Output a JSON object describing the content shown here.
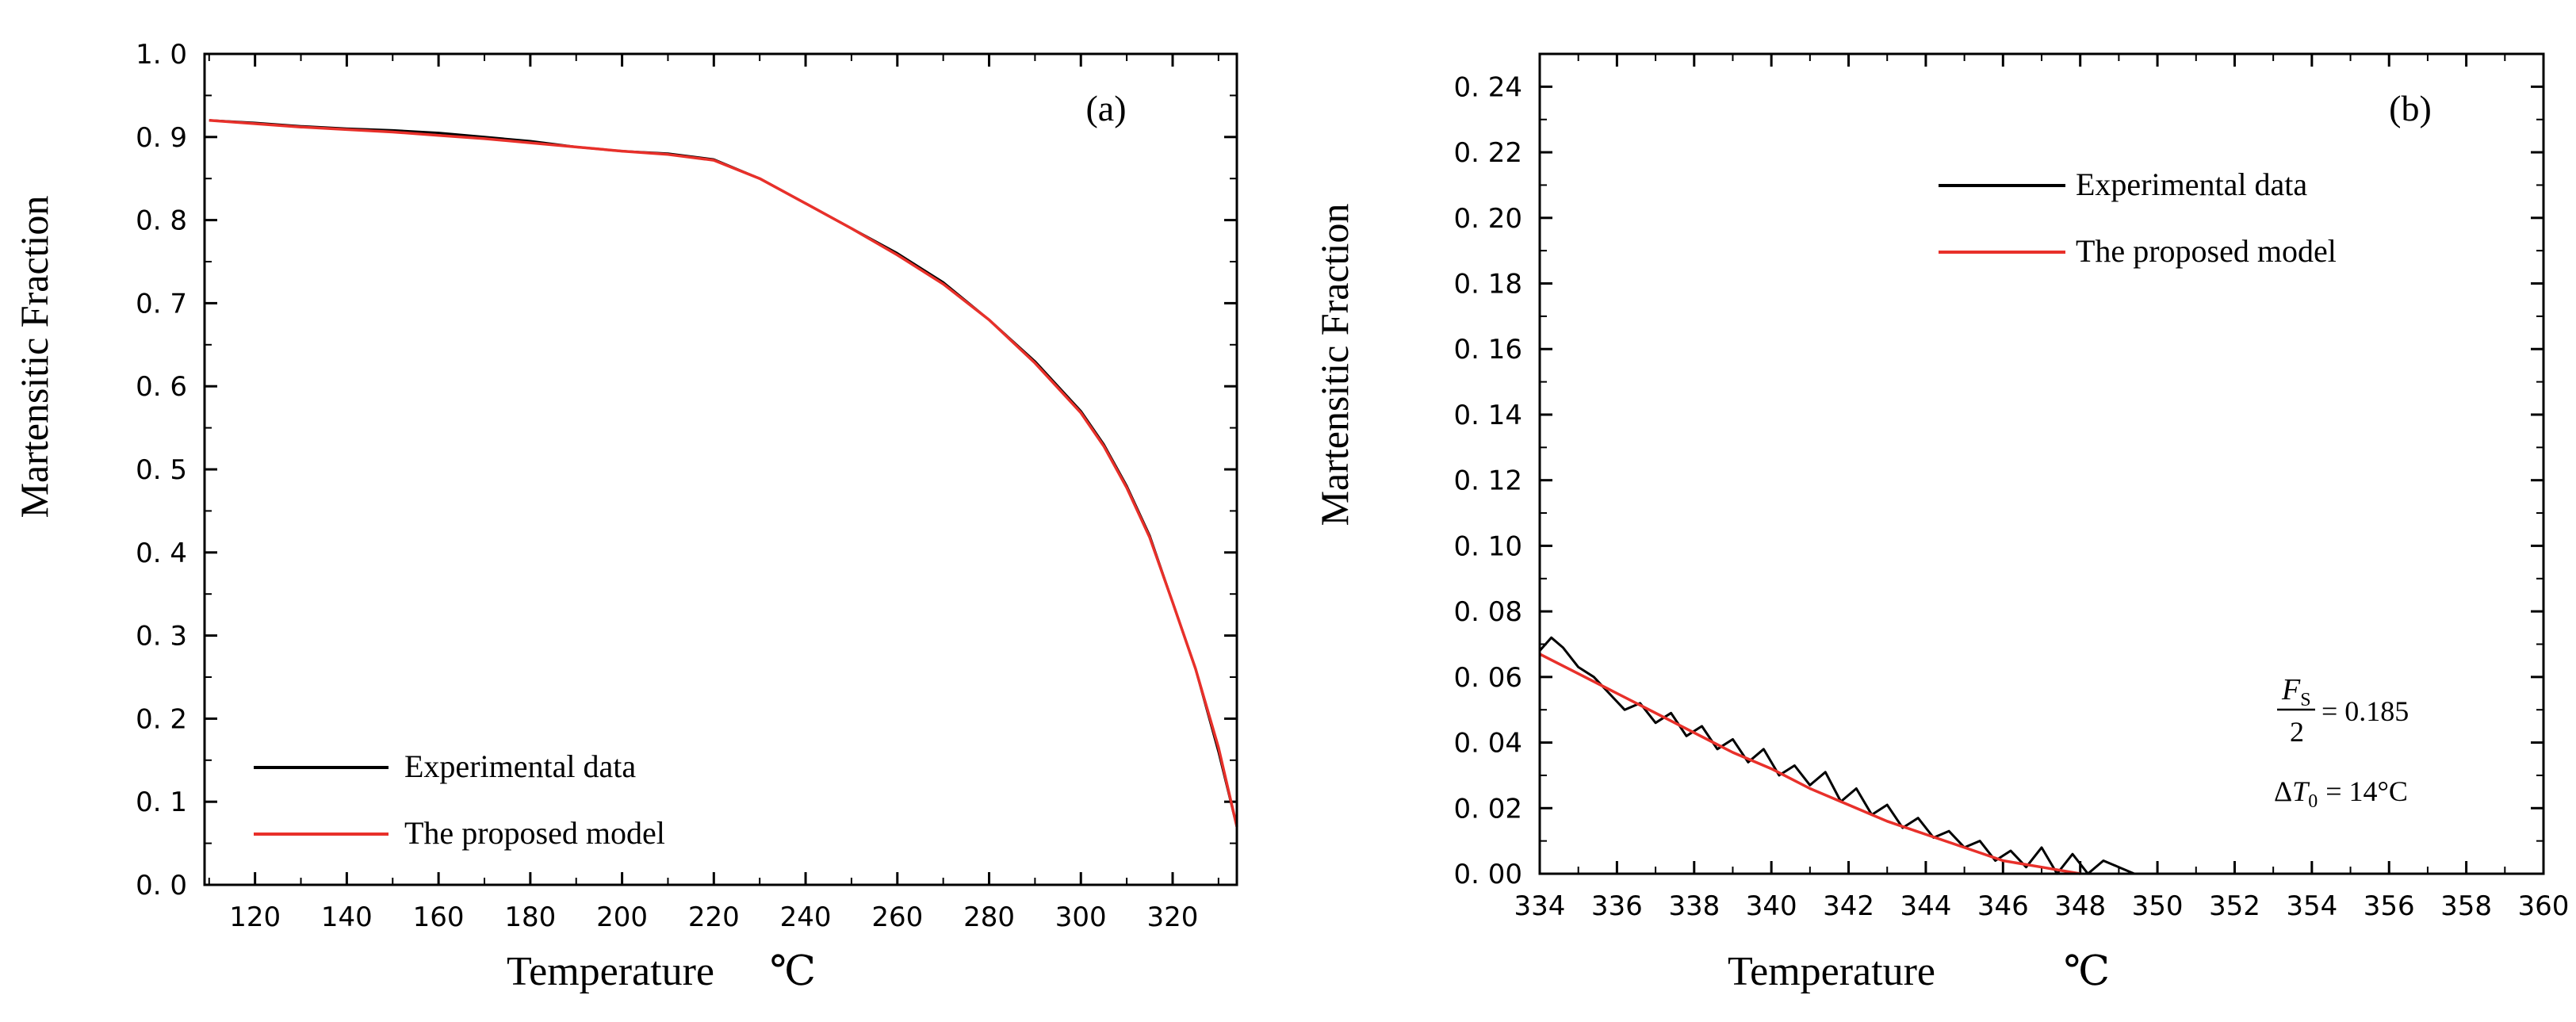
{
  "chart_data": [
    {
      "panel": "a",
      "type": "line",
      "panel_label": "(a)",
      "xlabel": "Temperature",
      "xunit": "℃",
      "ylabel": "Martensitic Fraction",
      "xlim": [
        109,
        334
      ],
      "ylim": [
        0,
        1.0
      ],
      "xticks": [
        120,
        140,
        160,
        180,
        200,
        220,
        240,
        260,
        280,
        300,
        320
      ],
      "yticks": [
        "0. 0",
        "0. 1",
        "0. 2",
        "0. 3",
        "0. 4",
        "0. 5",
        "0. 6",
        "0. 7",
        "0. 8",
        "0. 9",
        "1. 0"
      ],
      "legend_position": "bottom-left",
      "series": [
        {
          "name": "Experimental data",
          "color": "#000000",
          "x": [
            110,
            120,
            130,
            140,
            150,
            160,
            170,
            180,
            190,
            200,
            210,
            220,
            230,
            240,
            250,
            260,
            270,
            280,
            290,
            300,
            305,
            310,
            315,
            320,
            325,
            330,
            334
          ],
          "y": [
            0.92,
            0.917,
            0.913,
            0.91,
            0.908,
            0.905,
            0.9,
            0.895,
            0.888,
            0.883,
            0.88,
            0.873,
            0.85,
            0.82,
            0.79,
            0.76,
            0.725,
            0.68,
            0.63,
            0.57,
            0.53,
            0.48,
            0.42,
            0.34,
            0.26,
            0.16,
            0.07
          ]
        },
        {
          "name": "The proposed model",
          "color": "#e8302a",
          "x": [
            110,
            120,
            130,
            140,
            150,
            160,
            170,
            180,
            190,
            200,
            210,
            220,
            230,
            240,
            250,
            260,
            270,
            280,
            290,
            300,
            305,
            310,
            315,
            320,
            325,
            330,
            334
          ],
          "y": [
            0.92,
            0.916,
            0.912,
            0.909,
            0.906,
            0.902,
            0.898,
            0.893,
            0.888,
            0.883,
            0.879,
            0.872,
            0.85,
            0.82,
            0.79,
            0.758,
            0.723,
            0.68,
            0.628,
            0.568,
            0.528,
            0.478,
            0.418,
            0.34,
            0.26,
            0.165,
            0.07
          ]
        }
      ]
    },
    {
      "panel": "b",
      "type": "line",
      "panel_label": "(b)",
      "xlabel": "Temperature",
      "xunit": "℃",
      "ylabel": "Martensitic Fraction",
      "xlim": [
        334,
        360
      ],
      "ylim": [
        0,
        0.25
      ],
      "xticks": [
        334,
        336,
        338,
        340,
        342,
        344,
        346,
        348,
        350,
        352,
        354,
        356,
        358,
        360
      ],
      "yticks": [
        "0. 00",
        "0. 02",
        "0. 04",
        "0. 06",
        "0. 08",
        "0. 10",
        "0. 12",
        "0. 14",
        "0. 16",
        "0. 18",
        "0. 20",
        "0. 22",
        "0. 24"
      ],
      "legend_position": "top-right",
      "annotation": {
        "numerator": "F",
        "numerator_sub": "S",
        "denominator": "2",
        "eq1_value": "= 0.185",
        "delta": "Δ",
        "symbol": "T",
        "symbol_sub": "0",
        "eq2_value": "= 14°C"
      },
      "series": [
        {
          "name": "Experimental data",
          "color": "#000000",
          "x": [
            334.0,
            334.3,
            334.6,
            335.0,
            335.4,
            335.8,
            336.2,
            336.6,
            337.0,
            337.4,
            337.8,
            338.2,
            338.6,
            339.0,
            339.4,
            339.8,
            340.2,
            340.6,
            341.0,
            341.4,
            341.8,
            342.2,
            342.6,
            343.0,
            343.4,
            343.8,
            344.2,
            344.6,
            345.0,
            345.4,
            345.8,
            346.2,
            346.6,
            347.0,
            347.4,
            347.8,
            348.2,
            348.6,
            349.0,
            349.4
          ],
          "y": [
            0.068,
            0.072,
            0.069,
            0.063,
            0.06,
            0.055,
            0.05,
            0.052,
            0.046,
            0.049,
            0.042,
            0.045,
            0.038,
            0.041,
            0.034,
            0.038,
            0.03,
            0.033,
            0.027,
            0.031,
            0.022,
            0.026,
            0.018,
            0.021,
            0.014,
            0.017,
            0.011,
            0.013,
            0.008,
            0.01,
            0.004,
            0.007,
            0.002,
            0.008,
            0.0,
            0.006,
            0.0,
            0.004,
            0.002,
            0.0
          ]
        },
        {
          "name": "The proposed model",
          "color": "#e8302a",
          "x": [
            334,
            335,
            336,
            337,
            338,
            339,
            340,
            341,
            342,
            343,
            344,
            345,
            346,
            347,
            348
          ],
          "y": [
            0.067,
            0.061,
            0.055,
            0.049,
            0.043,
            0.037,
            0.032,
            0.026,
            0.021,
            0.016,
            0.012,
            0.008,
            0.004,
            0.002,
            0.0
          ]
        }
      ]
    }
  ]
}
